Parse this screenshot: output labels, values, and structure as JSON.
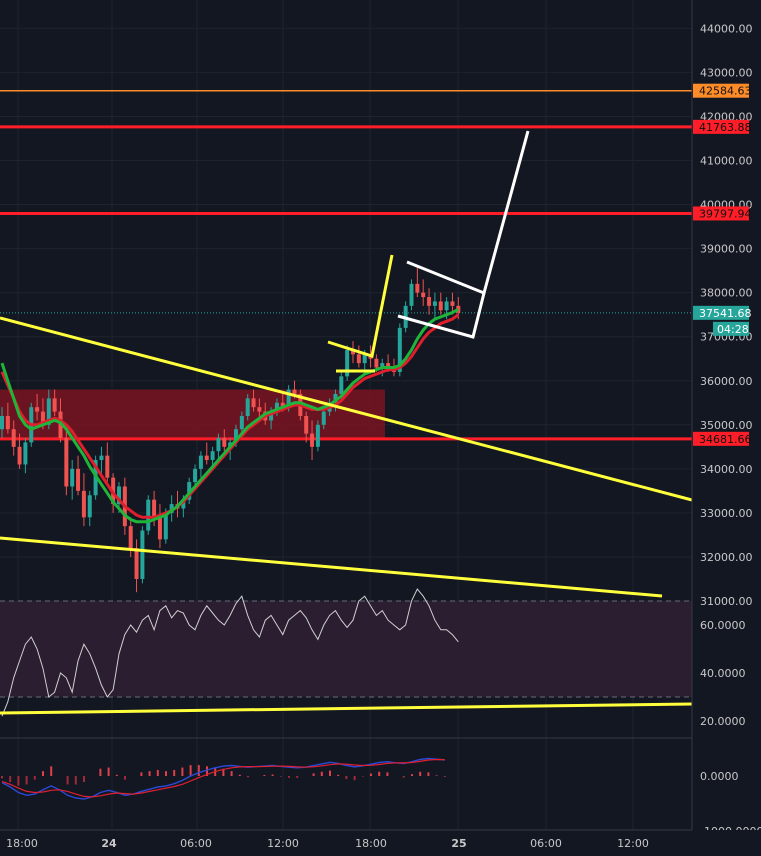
{
  "colors": {
    "background": "#131722",
    "grid": "#1f232e",
    "axis_text": "#c8c8c8",
    "candle_up": "#26a69a",
    "candle_down": "#ef5350",
    "ma_fast": "#1fb53a",
    "ma_slow": "#e01e2c",
    "level_red": "#ff1e28",
    "level_orange": "#ff8c28",
    "trend_yellow": "#ffff3c",
    "white_pattern": "#ffffff",
    "price_badge": "#26a69a",
    "zone": "#7a1422",
    "rsi_band": "#2a1e30",
    "rsi_line": "#d0d0d0",
    "macd_line": "#2b4ad8",
    "signal_line": "#e02030"
  },
  "chart_data": {
    "type": "candlestick",
    "x_tick_labels": [
      "18:00",
      "24",
      "06:00",
      "12:00",
      "18:00",
      "25",
      "06:00",
      "12:00"
    ],
    "price_axis": {
      "ticks": [
        {
          "value": 31000,
          "label": "31000.00"
        },
        {
          "value": 32000,
          "label": "32000.00"
        },
        {
          "value": 33000,
          "label": "33000.00"
        },
        {
          "value": 34000,
          "label": "34000.00"
        },
        {
          "value": 35000,
          "label": "35000.00"
        },
        {
          "value": 36000,
          "label": "36000.00"
        },
        {
          "value": 37000,
          "label": "37000.00"
        },
        {
          "value": 38000,
          "label": "38000.00"
        },
        {
          "value": 39000,
          "label": "39000.00"
        },
        {
          "value": 40000,
          "label": "40000.00"
        },
        {
          "value": 41000,
          "label": "41000.00"
        },
        {
          "value": 42000,
          "label": "42000.00"
        },
        {
          "value": 43000,
          "label": "43000.00"
        },
        {
          "value": 44000,
          "label": "44000.00"
        }
      ]
    },
    "horizontal_levels": [
      {
        "value": 42584.63,
        "label": "42584.63",
        "color": "#ff8c28"
      },
      {
        "value": 41763.88,
        "label": "41763.88",
        "color": "#ff1e28"
      },
      {
        "value": 39797.94,
        "label": "39797.94",
        "color": "#ff1e28"
      },
      {
        "value": 34681.66,
        "label": "34681.66",
        "color": "#ff1e28"
      }
    ],
    "current_price": {
      "value": 37541.68,
      "label": "37541.68",
      "countdown": "04:28"
    },
    "rsi_axis": [
      {
        "value": 20,
        "label": "20.0000"
      },
      {
        "value": 40,
        "label": "40.0000"
      },
      {
        "value": 60,
        "label": "60.0000"
      }
    ],
    "rsi_band": [
      30,
      70
    ],
    "macd_axis": [
      {
        "value": 0,
        "label": "0.0000"
      },
      {
        "value": -1000,
        "label": "-1000.0000"
      }
    ],
    "candles": [
      [
        34900,
        35400,
        34700,
        35200
      ],
      [
        35200,
        35500,
        34800,
        34900
      ],
      [
        34900,
        35100,
        34300,
        34500
      ],
      [
        34500,
        34800,
        34000,
        34100
      ],
      [
        34100,
        34700,
        33900,
        34600
      ],
      [
        34600,
        35500,
        34500,
        35400
      ],
      [
        35400,
        35700,
        35100,
        35300
      ],
      [
        35300,
        35600,
        34900,
        35000
      ],
      [
        35000,
        35800,
        34900,
        35600
      ],
      [
        35600,
        35800,
        35200,
        35300
      ],
      [
        35300,
        35600,
        34600,
        34700
      ],
      [
        34700,
        34900,
        33400,
        33600
      ],
      [
        33600,
        34200,
        33300,
        34000
      ],
      [
        34000,
        34300,
        33400,
        33500
      ],
      [
        33500,
        33900,
        32700,
        32900
      ],
      [
        32900,
        33500,
        32700,
        33400
      ],
      [
        33400,
        34300,
        33300,
        34200
      ],
      [
        34200,
        34500,
        33900,
        34300
      ],
      [
        34300,
        34600,
        33700,
        33800
      ],
      [
        33800,
        33900,
        33000,
        33200
      ],
      [
        33200,
        33700,
        33000,
        33600
      ],
      [
        33600,
        33800,
        32500,
        32700
      ],
      [
        32700,
        32900,
        32000,
        32200
      ],
      [
        32200,
        32400,
        31200,
        31500
      ],
      [
        31500,
        32700,
        31400,
        32600
      ],
      [
        32600,
        33400,
        32500,
        33300
      ],
      [
        33300,
        33500,
        32700,
        32900
      ],
      [
        32900,
        33200,
        32200,
        32400
      ],
      [
        32400,
        33100,
        32300,
        33000
      ],
      [
        33000,
        33400,
        32800,
        33200
      ],
      [
        33200,
        33500,
        32900,
        33100
      ],
      [
        33100,
        33400,
        32900,
        33300
      ],
      [
        33300,
        33800,
        33200,
        33700
      ],
      [
        33700,
        34100,
        33600,
        34000
      ],
      [
        34000,
        34400,
        33800,
        34300
      ],
      [
        34300,
        34600,
        34100,
        34200
      ],
      [
        34200,
        34500,
        34000,
        34400
      ],
      [
        34400,
        34800,
        34200,
        34700
      ],
      [
        34700,
        34900,
        34400,
        34500
      ],
      [
        34500,
        34700,
        34200,
        34600
      ],
      [
        34600,
        35000,
        34500,
        34900
      ],
      [
        34900,
        35300,
        34800,
        35200
      ],
      [
        35200,
        35700,
        35100,
        35600
      ],
      [
        35600,
        35800,
        35300,
        35400
      ],
      [
        35400,
        35600,
        35100,
        35300
      ],
      [
        35300,
        35500,
        35000,
        35100
      ],
      [
        35100,
        35400,
        34900,
        35300
      ],
      [
        35300,
        35600,
        35200,
        35500
      ],
      [
        35500,
        35700,
        35300,
        35400
      ],
      [
        35400,
        35900,
        35300,
        35800
      ],
      [
        35800,
        36000,
        35600,
        35700
      ],
      [
        35700,
        35800,
        35100,
        35200
      ],
      [
        35200,
        35300,
        34600,
        34800
      ],
      [
        34800,
        35100,
        34200,
        34500
      ],
      [
        34500,
        35100,
        34400,
        35000
      ],
      [
        35000,
        35400,
        34900,
        35300
      ],
      [
        35300,
        35600,
        35200,
        35500
      ],
      [
        35500,
        35800,
        35300,
        35700
      ],
      [
        35700,
        36200,
        35600,
        36100
      ],
      [
        36100,
        36800,
        36000,
        36700
      ],
      [
        36700,
        36900,
        36400,
        36600
      ],
      [
        36600,
        36800,
        36300,
        36400
      ],
      [
        36400,
        36700,
        36200,
        36600
      ],
      [
        36600,
        36800,
        36300,
        36500
      ],
      [
        36500,
        36600,
        36200,
        36300
      ],
      [
        36300,
        36500,
        36100,
        36400
      ],
      [
        36400,
        36600,
        36200,
        36300
      ],
      [
        36300,
        36500,
        36100,
        36200
      ],
      [
        36200,
        37300,
        36100,
        37200
      ],
      [
        37200,
        37800,
        37100,
        37700
      ],
      [
        37700,
        38300,
        37600,
        38200
      ],
      [
        38200,
        38600,
        37900,
        38000
      ],
      [
        38000,
        38300,
        37700,
        37900
      ],
      [
        37900,
        38100,
        37500,
        37700
      ],
      [
        37700,
        38000,
        37400,
        37800
      ],
      [
        37800,
        38000,
        37500,
        37600
      ],
      [
        37600,
        37900,
        37400,
        37800
      ],
      [
        37800,
        38000,
        37500,
        37700
      ],
      [
        37700,
        37900,
        37400,
        37541.68
      ]
    ],
    "ma_fast": [
      36400,
      36000,
      35600,
      35200,
      35000,
      34900,
      34950,
      35000,
      35050,
      35100,
      35050,
      34900,
      34700,
      34500,
      34300,
      34050,
      33850,
      33650,
      33450,
      33250,
      33100,
      32950,
      32850,
      32800,
      32800,
      32800,
      32850,
      32900,
      32950,
      33050,
      33150,
      33300,
      33450,
      33600,
      33750,
      33900,
      34050,
      34200,
      34350,
      34500,
      34650,
      34800,
      34950,
      35050,
      35150,
      35250,
      35300,
      35350,
      35400,
      35450,
      35500,
      35500,
      35450,
      35400,
      35350,
      35400,
      35450,
      35550,
      35650,
      35800,
      35950,
      36050,
      36150,
      36200,
      36250,
      36300,
      36300,
      36300,
      36350,
      36500,
      36700,
      36950,
      37150,
      37300,
      37400,
      37450,
      37500,
      37550,
      37620
    ],
    "ma_slow": [
      36200,
      35900,
      35600,
      35300,
      35100,
      35000,
      35000,
      35050,
      35100,
      35150,
      35100,
      35000,
      34850,
      34650,
      34450,
      34250,
      34050,
      33850,
      33650,
      33450,
      33300,
      33150,
      33050,
      32950,
      32900,
      32900,
      32900,
      32950,
      33000,
      33050,
      33150,
      33250,
      33400,
      33550,
      33700,
      33850,
      34000,
      34150,
      34300,
      34450,
      34600,
      34750,
      34900,
      35000,
      35100,
      35200,
      35250,
      35300,
      35350,
      35400,
      35450,
      35450,
      35400,
      35350,
      35350,
      35350,
      35400,
      35450,
      35550,
      35700,
      35850,
      35950,
      36050,
      36100,
      36150,
      36200,
      36250,
      36250,
      36300,
      36400,
      36550,
      36750,
      36950,
      37100,
      37200,
      37300,
      37350,
      37400,
      37500
    ],
    "rsi": [
      22,
      28,
      38,
      45,
      52,
      55,
      50,
      42,
      30,
      32,
      40,
      38,
      32,
      45,
      52,
      48,
      42,
      35,
      30,
      33,
      48,
      56,
      60,
      57,
      62,
      64,
      58,
      66,
      68,
      63,
      66,
      65,
      60,
      58,
      64,
      68,
      65,
      62,
      60,
      64,
      69,
      72,
      64,
      58,
      55,
      62,
      64,
      60,
      56,
      62,
      64,
      66,
      63,
      58,
      54,
      60,
      64,
      66,
      62,
      59,
      62,
      70,
      72,
      68,
      64,
      66,
      62,
      60,
      58,
      60,
      70,
      75,
      72,
      68,
      62,
      58,
      58,
      56,
      53
    ],
    "macd": [
      -120,
      -200,
      -300,
      -350,
      -330,
      -250,
      -180,
      -250,
      -350,
      -400,
      -420,
      -380,
      -300,
      -260,
      -300,
      -350,
      -330,
      -280,
      -240,
      -200,
      -180,
      -140,
      -80,
      0,
      60,
      110,
      150,
      180,
      190,
      175,
      160,
      170,
      180,
      190,
      175,
      160,
      150,
      160,
      190,
      220,
      250,
      230,
      190,
      165,
      185,
      215,
      245,
      260,
      240,
      225,
      260,
      300,
      320,
      305,
      290
    ],
    "signal": [
      -100,
      -150,
      -220,
      -280,
      -300,
      -290,
      -260,
      -250,
      -280,
      -330,
      -370,
      -380,
      -360,
      -330,
      -310,
      -320,
      -330,
      -310,
      -280,
      -250,
      -220,
      -190,
      -150,
      -90,
      -30,
      30,
      80,
      120,
      150,
      165,
      170,
      170,
      172,
      178,
      180,
      175,
      165,
      160,
      168,
      185,
      205,
      220,
      215,
      200,
      190,
      195,
      210,
      230,
      240,
      238,
      245,
      265,
      290,
      300,
      298
    ]
  }
}
